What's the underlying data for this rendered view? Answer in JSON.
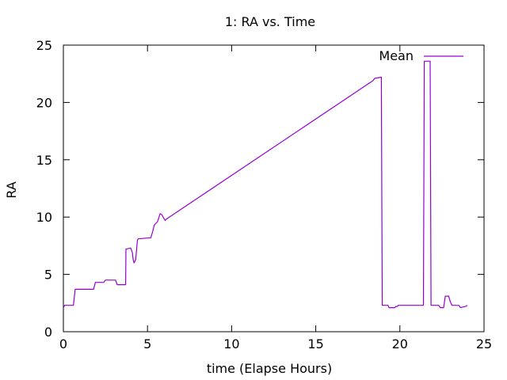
{
  "chart_data": {
    "type": "line",
    "title": "1: RA vs. Time",
    "xlabel": "time (Elapse Hours)",
    "ylabel": "RA",
    "xlim": [
      0,
      25
    ],
    "ylim": [
      0,
      25
    ],
    "xticks": [
      0,
      5,
      10,
      15,
      20,
      25
    ],
    "yticks": [
      0,
      5,
      10,
      15,
      20,
      25
    ],
    "grid": false,
    "legend_position": "top-right",
    "series": [
      {
        "name": "Mean",
        "color": "#9400d3",
        "x": [
          0,
          0.08,
          0.15,
          0.6,
          0.7,
          0.75,
          1.0,
          1.8,
          1.9,
          2.0,
          2.4,
          2.5,
          3.1,
          3.2,
          3.6,
          3.7,
          3.72,
          4.0,
          4.1,
          4.15,
          4.2,
          4.3,
          4.4,
          4.45,
          5.2,
          5.3,
          5.4,
          5.6,
          5.75,
          5.85,
          6.05,
          6.1,
          6.2,
          18.4,
          18.5,
          18.9,
          18.95,
          19.3,
          19.35,
          19.7,
          19.75,
          19.85,
          19.9,
          20.0,
          20.1,
          21.4,
          21.45,
          21.8,
          21.85,
          22.3,
          22.4,
          22.6,
          22.7,
          22.9,
          23.0,
          23.1,
          23.5,
          23.6,
          23.9,
          24.0
        ],
        "y": [
          2.1,
          2.3,
          2.3,
          2.3,
          3.7,
          3.7,
          3.7,
          3.7,
          4.3,
          4.3,
          4.3,
          4.5,
          4.5,
          4.1,
          4.1,
          4.1,
          7.2,
          7.3,
          6.9,
          6.3,
          6.0,
          6.3,
          8.0,
          8.1,
          8.2,
          8.7,
          9.3,
          9.6,
          10.3,
          10.2,
          9.7,
          9.8,
          9.9,
          21.9,
          22.1,
          22.2,
          2.3,
          2.3,
          2.1,
          2.1,
          2.2,
          2.2,
          2.3,
          2.3,
          2.3,
          2.3,
          23.6,
          23.6,
          2.3,
          2.3,
          2.1,
          2.1,
          3.1,
          3.1,
          2.6,
          2.3,
          2.3,
          2.1,
          2.2,
          2.3
        ]
      }
    ]
  }
}
